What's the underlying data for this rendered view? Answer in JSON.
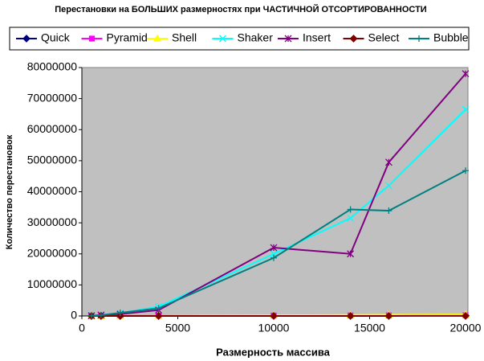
{
  "chart_data": {
    "type": "line",
    "title": "Перестановки на БОЛЬШИХ размерностях при ЧАСТИЧНОЙ ОТСОРТИРОВАННОСТИ",
    "x_label": "Размерность массива",
    "y_label": "Количество перестановок",
    "x": [
      500,
      1000,
      2000,
      4000,
      10000,
      14000,
      16000,
      20000
    ],
    "xlim": [
      0,
      20000
    ],
    "xticks": [
      0,
      5000,
      10000,
      15000,
      20000
    ],
    "ylim": [
      0,
      80000000
    ],
    "yticks": [
      0,
      10000000,
      20000000,
      30000000,
      40000000,
      50000000,
      60000000,
      70000000,
      80000000
    ],
    "grid": false,
    "legend": "top",
    "plot_background": "#c0c0c0",
    "series": [
      {
        "name": "Quick",
        "color": "#000080",
        "marker": "diamond",
        "values": [
          2000,
          5000,
          10000,
          25000,
          70000,
          100000,
          120000,
          150000
        ]
      },
      {
        "name": "Pyramid",
        "color": "#ff00ff",
        "marker": "square",
        "values": [
          4000,
          9000,
          20000,
          45000,
          120000,
          170000,
          200000,
          250000
        ]
      },
      {
        "name": "Shell",
        "color": "#ffff00",
        "marker": "triangle",
        "values": [
          6000,
          15000,
          35000,
          80000,
          220000,
          320000,
          380000,
          500000
        ]
      },
      {
        "name": "Shaker",
        "color": "#00ffff",
        "marker": "x",
        "values": [
          100000,
          300000,
          900000,
          3000000,
          20000000,
          31500000,
          42000000,
          66500000
        ]
      },
      {
        "name": "Insert",
        "color": "#800080",
        "marker": "star",
        "values": [
          80000,
          300000,
          600000,
          1900000,
          22000000,
          20000000,
          49500000,
          78000000
        ]
      },
      {
        "name": "Select",
        "color": "#800000",
        "marker": "diamond",
        "values": [
          500,
          1000,
          2000,
          4000,
          10000,
          14000,
          16000,
          20000
        ]
      },
      {
        "name": "Bubble",
        "color": "#008080",
        "marker": "plus",
        "values": [
          60000,
          250000,
          1000000,
          2500000,
          18700000,
          34300000,
          33900000,
          46800000
        ]
      }
    ]
  }
}
